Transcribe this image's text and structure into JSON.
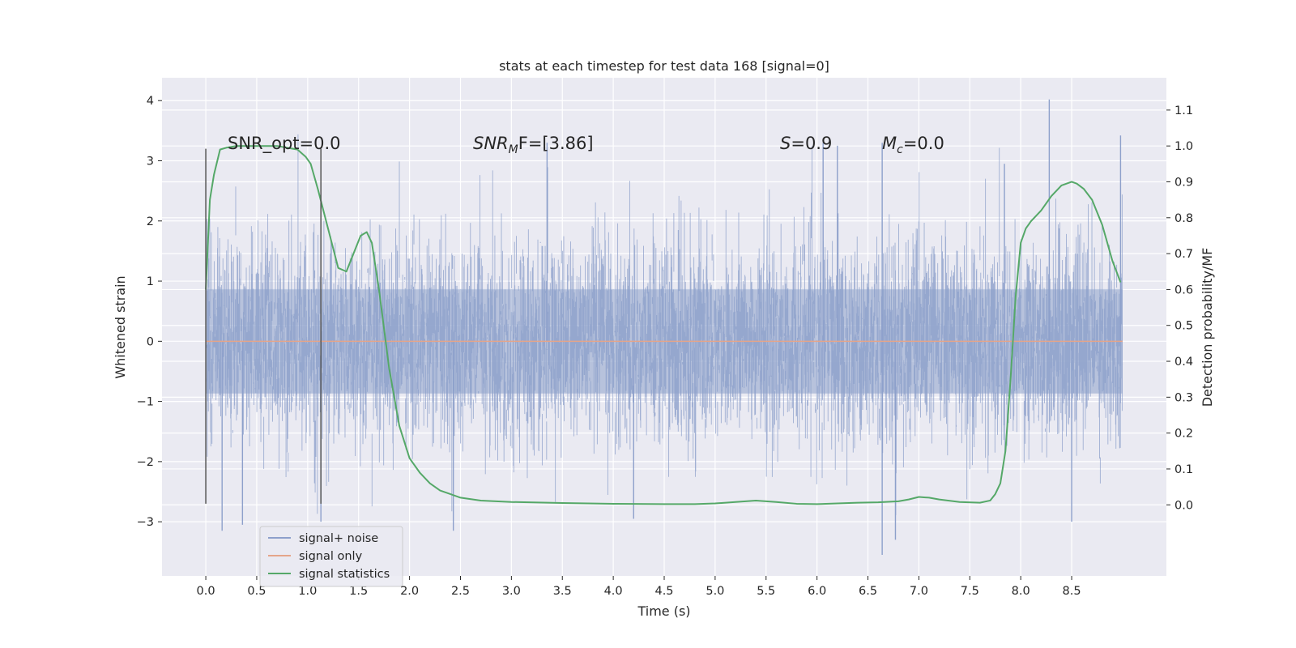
{
  "chart_data": {
    "type": "line",
    "title": "stats at each timestep for test data 168 [signal=0]",
    "xlabel": "Time (s)",
    "ylabel": "Whitened strain",
    "y2label": "Detection probability/MF",
    "xlim": [
      -0.43,
      9.43
    ],
    "ylim": [
      -3.9,
      4.38
    ],
    "y2lim": [
      -0.198,
      1.19
    ],
    "x_ticks": [
      "0.0",
      "0.5",
      "1.0",
      "1.5",
      "2.0",
      "2.5",
      "3.0",
      "3.5",
      "4.0",
      "4.5",
      "5.0",
      "5.5",
      "6.0",
      "6.5",
      "7.0",
      "7.5",
      "8.0",
      "8.5"
    ],
    "y_ticks": [
      "4",
      "3",
      "2",
      "1",
      "0",
      "−1",
      "−2",
      "−3"
    ],
    "y2_ticks": [
      "1.1",
      "1.0",
      "0.9",
      "0.8",
      "0.7",
      "0.6",
      "0.5",
      "0.4",
      "0.3",
      "0.2",
      "0.1",
      "0.0"
    ],
    "grid": true,
    "legend_position": "lower-left",
    "annotations": {
      "snr_opt": "SNR_opt=0.0",
      "snr_mf_prefix": "SNR",
      "snr_mf_sub": "M",
      "snr_mf_suffix": "F=[3.86]",
      "s_label": "S",
      "s_value": "=0.9",
      "mc_label": "M",
      "mc_sub": "c",
      "mc_value": "=0.0"
    },
    "vlines": [
      0.0,
      1.13
    ],
    "series": [
      {
        "name": "signal+ noise",
        "color": "#8da0cb",
        "axis": "left",
        "x_range": [
          0.0,
          9.0
        ],
        "envelope_typical": 1.4,
        "spikes": [
          {
            "x": 0.16,
            "y": -3.15
          },
          {
            "x": 0.36,
            "y": -3.05
          },
          {
            "x": 1.13,
            "y": -3.0
          },
          {
            "x": 2.43,
            "y": -3.15
          },
          {
            "x": 3.35,
            "y": 3.3
          },
          {
            "x": 4.2,
            "y": -2.95
          },
          {
            "x": 6.06,
            "y": 3.3
          },
          {
            "x": 6.2,
            "y": 3.25
          },
          {
            "x": 6.64,
            "y": 3.3
          },
          {
            "x": 6.64,
            "y": -3.55
          },
          {
            "x": 6.77,
            "y": -3.3
          },
          {
            "x": 7.84,
            "y": 2.95
          },
          {
            "x": 8.28,
            "y": 4.02
          },
          {
            "x": 8.5,
            "y": -3.0
          },
          {
            "x": 8.98,
            "y": 3.42
          }
        ]
      },
      {
        "name": "signal only",
        "color": "#e5a58a",
        "axis": "left",
        "x": [
          0.0,
          9.0
        ],
        "y": [
          0.0,
          0.0
        ]
      },
      {
        "name": "signal statistics",
        "color": "#55a868",
        "axis": "right",
        "x": [
          0.0,
          0.04,
          0.08,
          0.14,
          0.2,
          0.3,
          0.5,
          0.7,
          0.9,
          0.98,
          1.03,
          1.1,
          1.2,
          1.3,
          1.38,
          1.45,
          1.52,
          1.58,
          1.63,
          1.7,
          1.8,
          1.9,
          2.0,
          2.1,
          2.2,
          2.3,
          2.4,
          2.5,
          2.7,
          3.0,
          3.5,
          4.0,
          4.5,
          4.8,
          5.0,
          5.2,
          5.4,
          5.6,
          5.8,
          6.0,
          6.2,
          6.4,
          6.6,
          6.8,
          6.9,
          7.0,
          7.1,
          7.2,
          7.4,
          7.6,
          7.7,
          7.75,
          7.8,
          7.85,
          7.9,
          7.95,
          8.0,
          8.05,
          8.1,
          8.2,
          8.3,
          8.4,
          8.5,
          8.55,
          8.62,
          8.7,
          8.8,
          8.9,
          8.98
        ],
        "y": [
          0.6,
          0.85,
          0.92,
          0.99,
          0.995,
          1.0,
          1.0,
          1.0,
          0.99,
          0.97,
          0.95,
          0.88,
          0.77,
          0.66,
          0.65,
          0.7,
          0.75,
          0.76,
          0.73,
          0.6,
          0.38,
          0.22,
          0.13,
          0.09,
          0.06,
          0.04,
          0.03,
          0.02,
          0.012,
          0.008,
          0.005,
          0.003,
          0.002,
          0.002,
          0.004,
          0.008,
          0.012,
          0.008,
          0.003,
          0.002,
          0.004,
          0.006,
          0.007,
          0.01,
          0.015,
          0.022,
          0.02,
          0.015,
          0.008,
          0.006,
          0.012,
          0.03,
          0.06,
          0.15,
          0.35,
          0.58,
          0.73,
          0.77,
          0.79,
          0.82,
          0.86,
          0.89,
          0.9,
          0.895,
          0.88,
          0.85,
          0.78,
          0.68,
          0.62
        ]
      }
    ]
  }
}
